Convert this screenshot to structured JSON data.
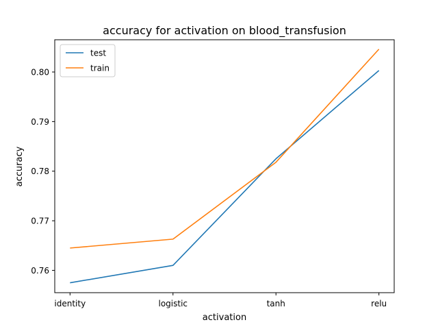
{
  "chart_data": {
    "type": "line",
    "title": "accuracy for activation on  blood_transfusion",
    "xlabel": "activation",
    "ylabel": "accuracy",
    "categories": [
      "identity",
      "logistic",
      "tanh",
      "relu"
    ],
    "ylim": [
      0.7555,
      0.8065
    ],
    "yticks": [
      0.76,
      0.77,
      0.78,
      0.79,
      0.8
    ],
    "ytick_labels": [
      "0.76",
      "0.77",
      "0.78",
      "0.79",
      "0.80"
    ],
    "grid": false,
    "legend_position": "upper-left",
    "series": [
      {
        "name": "test",
        "color": "#1f77b4",
        "values": [
          0.7575,
          0.761,
          0.7825,
          0.8003
        ]
      },
      {
        "name": "train",
        "color": "#ff7f0e",
        "values": [
          0.7645,
          0.7663,
          0.7818,
          0.8046
        ]
      }
    ]
  }
}
